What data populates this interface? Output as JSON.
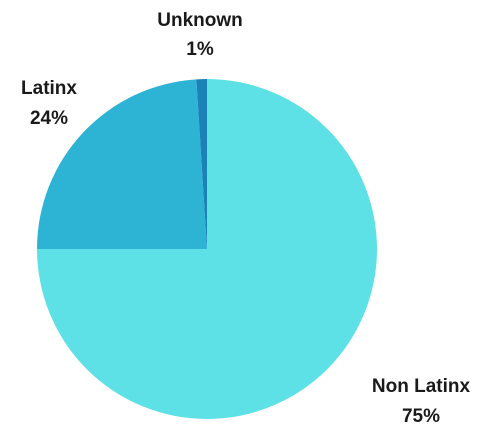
{
  "chart_data": {
    "type": "pie",
    "title": "",
    "slices": [
      {
        "name": "Non Latinx",
        "label": "Non Latinx",
        "value": 75,
        "value_label": "75%",
        "color": "#5de1e6"
      },
      {
        "name": "Latinx",
        "label": "Latinx",
        "value": 24,
        "value_label": "24%",
        "color": "#2db3d4"
      },
      {
        "name": "Unknown",
        "label": "Unknown",
        "value": 1,
        "value_label": "1%",
        "color": "#1b82b8"
      }
    ],
    "start": "12 o'clock",
    "direction": "clockwise"
  }
}
